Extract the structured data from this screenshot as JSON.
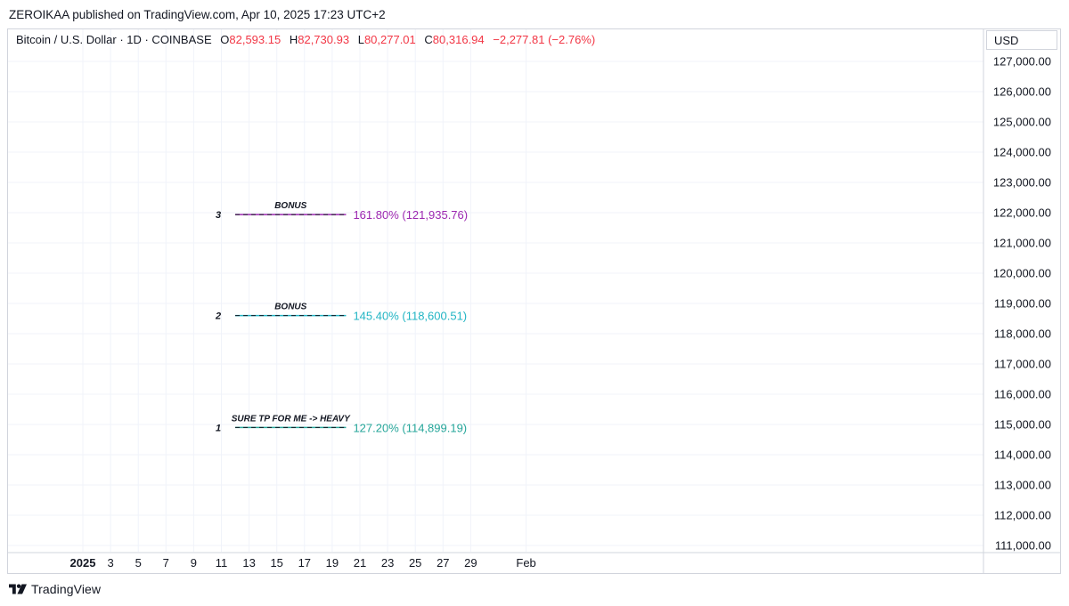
{
  "header": {
    "published": "ZEROIKAA published on TradingView.com, Apr 10, 2025 17:23 UTC+2"
  },
  "legend": {
    "symbol": "Bitcoin / U.S. Dollar · 1D · COINBASE",
    "open_label": "O",
    "open": "82,593.15",
    "high_label": "H",
    "high": "82,730.93",
    "low_label": "L",
    "low": "80,277.01",
    "close_label": "C",
    "close": "80,316.94",
    "change": "−2,277.81 (−2.76%)"
  },
  "currency": "USD",
  "footer": {
    "brand": "TradingView"
  },
  "colors": {
    "down": "#f23645",
    "grid": "#f0f3fa",
    "border": "#d1d4dc",
    "text": "#131722"
  },
  "chart_data": {
    "type": "line",
    "title": "",
    "y_axis": {
      "range": [
        110800,
        127700
      ],
      "ticks": [
        {
          "value": 111000,
          "label": "111,000.00"
        },
        {
          "value": 112000,
          "label": "112,000.00"
        },
        {
          "value": 113000,
          "label": "113,000.00"
        },
        {
          "value": 114000,
          "label": "114,000.00"
        },
        {
          "value": 115000,
          "label": "115,000.00"
        },
        {
          "value": 116000,
          "label": "116,000.00"
        },
        {
          "value": 117000,
          "label": "117,000.00"
        },
        {
          "value": 118000,
          "label": "118,000.00"
        },
        {
          "value": 119000,
          "label": "119,000.00"
        },
        {
          "value": 120000,
          "label": "120,000.00"
        },
        {
          "value": 121000,
          "label": "121,000.00"
        },
        {
          "value": 122000,
          "label": "122,000.00"
        },
        {
          "value": 123000,
          "label": "123,000.00"
        },
        {
          "value": 124000,
          "label": "124,000.00"
        },
        {
          "value": 125000,
          "label": "125,000.00"
        },
        {
          "value": 126000,
          "label": "126,000.00"
        },
        {
          "value": 127000,
          "label": "127,000.00"
        }
      ]
    },
    "x_axis": {
      "range": [
        "2024-12-30",
        "2025-02-04"
      ],
      "ticks": [
        {
          "date": "2025-01-01",
          "label": "2025",
          "bold": true
        },
        {
          "date": "2025-01-03",
          "label": "3"
        },
        {
          "date": "2025-01-05",
          "label": "5"
        },
        {
          "date": "2025-01-07",
          "label": "7"
        },
        {
          "date": "2025-01-09",
          "label": "9"
        },
        {
          "date": "2025-01-11",
          "label": "11"
        },
        {
          "date": "2025-01-13",
          "label": "13"
        },
        {
          "date": "2025-01-15",
          "label": "15"
        },
        {
          "date": "2025-01-17",
          "label": "17"
        },
        {
          "date": "2025-01-19",
          "label": "19"
        },
        {
          "date": "2025-01-21",
          "label": "21"
        },
        {
          "date": "2025-01-23",
          "label": "23"
        },
        {
          "date": "2025-01-25",
          "label": "25"
        },
        {
          "date": "2025-01-27",
          "label": "27"
        },
        {
          "date": "2025-01-29",
          "label": "29"
        },
        {
          "date": "2025-02-02",
          "label": "Feb"
        }
      ]
    },
    "levels": [
      {
        "number": "3",
        "note": "BONUS",
        "value": 121935.76,
        "label": "161.80% (121,935.76)",
        "color": "#9c27b0",
        "dash_color": "#131722",
        "x_start": "2025-01-12",
        "x_end": "2025-01-20"
      },
      {
        "number": "2",
        "note": "BONUS",
        "value": 118600.51,
        "label": "145.40% (118,600.51)",
        "color": "#22b5c4",
        "dash_color": "#131722",
        "x_start": "2025-01-12",
        "x_end": "2025-01-20"
      },
      {
        "number": "1",
        "note": "SURE TP FOR ME -> HEAVY",
        "value": 114899.19,
        "label": "127.20% (114,899.19)",
        "color": "#26a69a",
        "dash_color": "#131722",
        "x_start": "2025-01-12",
        "x_end": "2025-01-20"
      }
    ],
    "grid": true,
    "legend_position": "top-left"
  }
}
